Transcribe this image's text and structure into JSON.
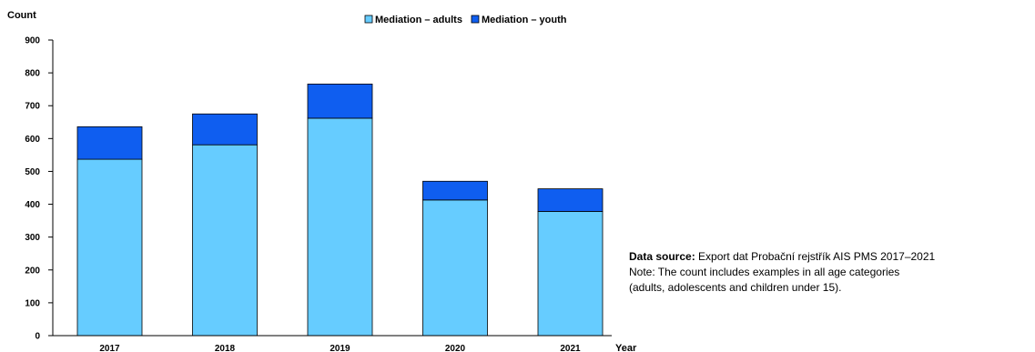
{
  "chart_data": {
    "type": "bar",
    "stacked": true,
    "categories": [
      "2017",
      "2018",
      "2019",
      "2020",
      "2021"
    ],
    "series": [
      {
        "name": "Mediation – adults",
        "values": [
          537,
          581,
          662,
          413,
          378
        ],
        "color": "#66ccff"
      },
      {
        "name": "Mediation – youth",
        "values": [
          99,
          94,
          104,
          57,
          69
        ],
        "color": "#0f5ef0"
      }
    ],
    "ylabel": "Count",
    "xlabel": "Year",
    "ylim": [
      0,
      900
    ],
    "yticks": [
      0,
      100,
      200,
      300,
      400,
      500,
      600,
      700,
      800,
      900
    ],
    "legend_position": "top-center",
    "grid": false
  },
  "source_note": {
    "label": "Data source:",
    "text": "Export dat Probační rejstřík AIS PMS 2017–2021",
    "note_line1": "Note: The count includes examples in all age categories",
    "note_line2": "(adults, adolescents and children under 15)."
  }
}
